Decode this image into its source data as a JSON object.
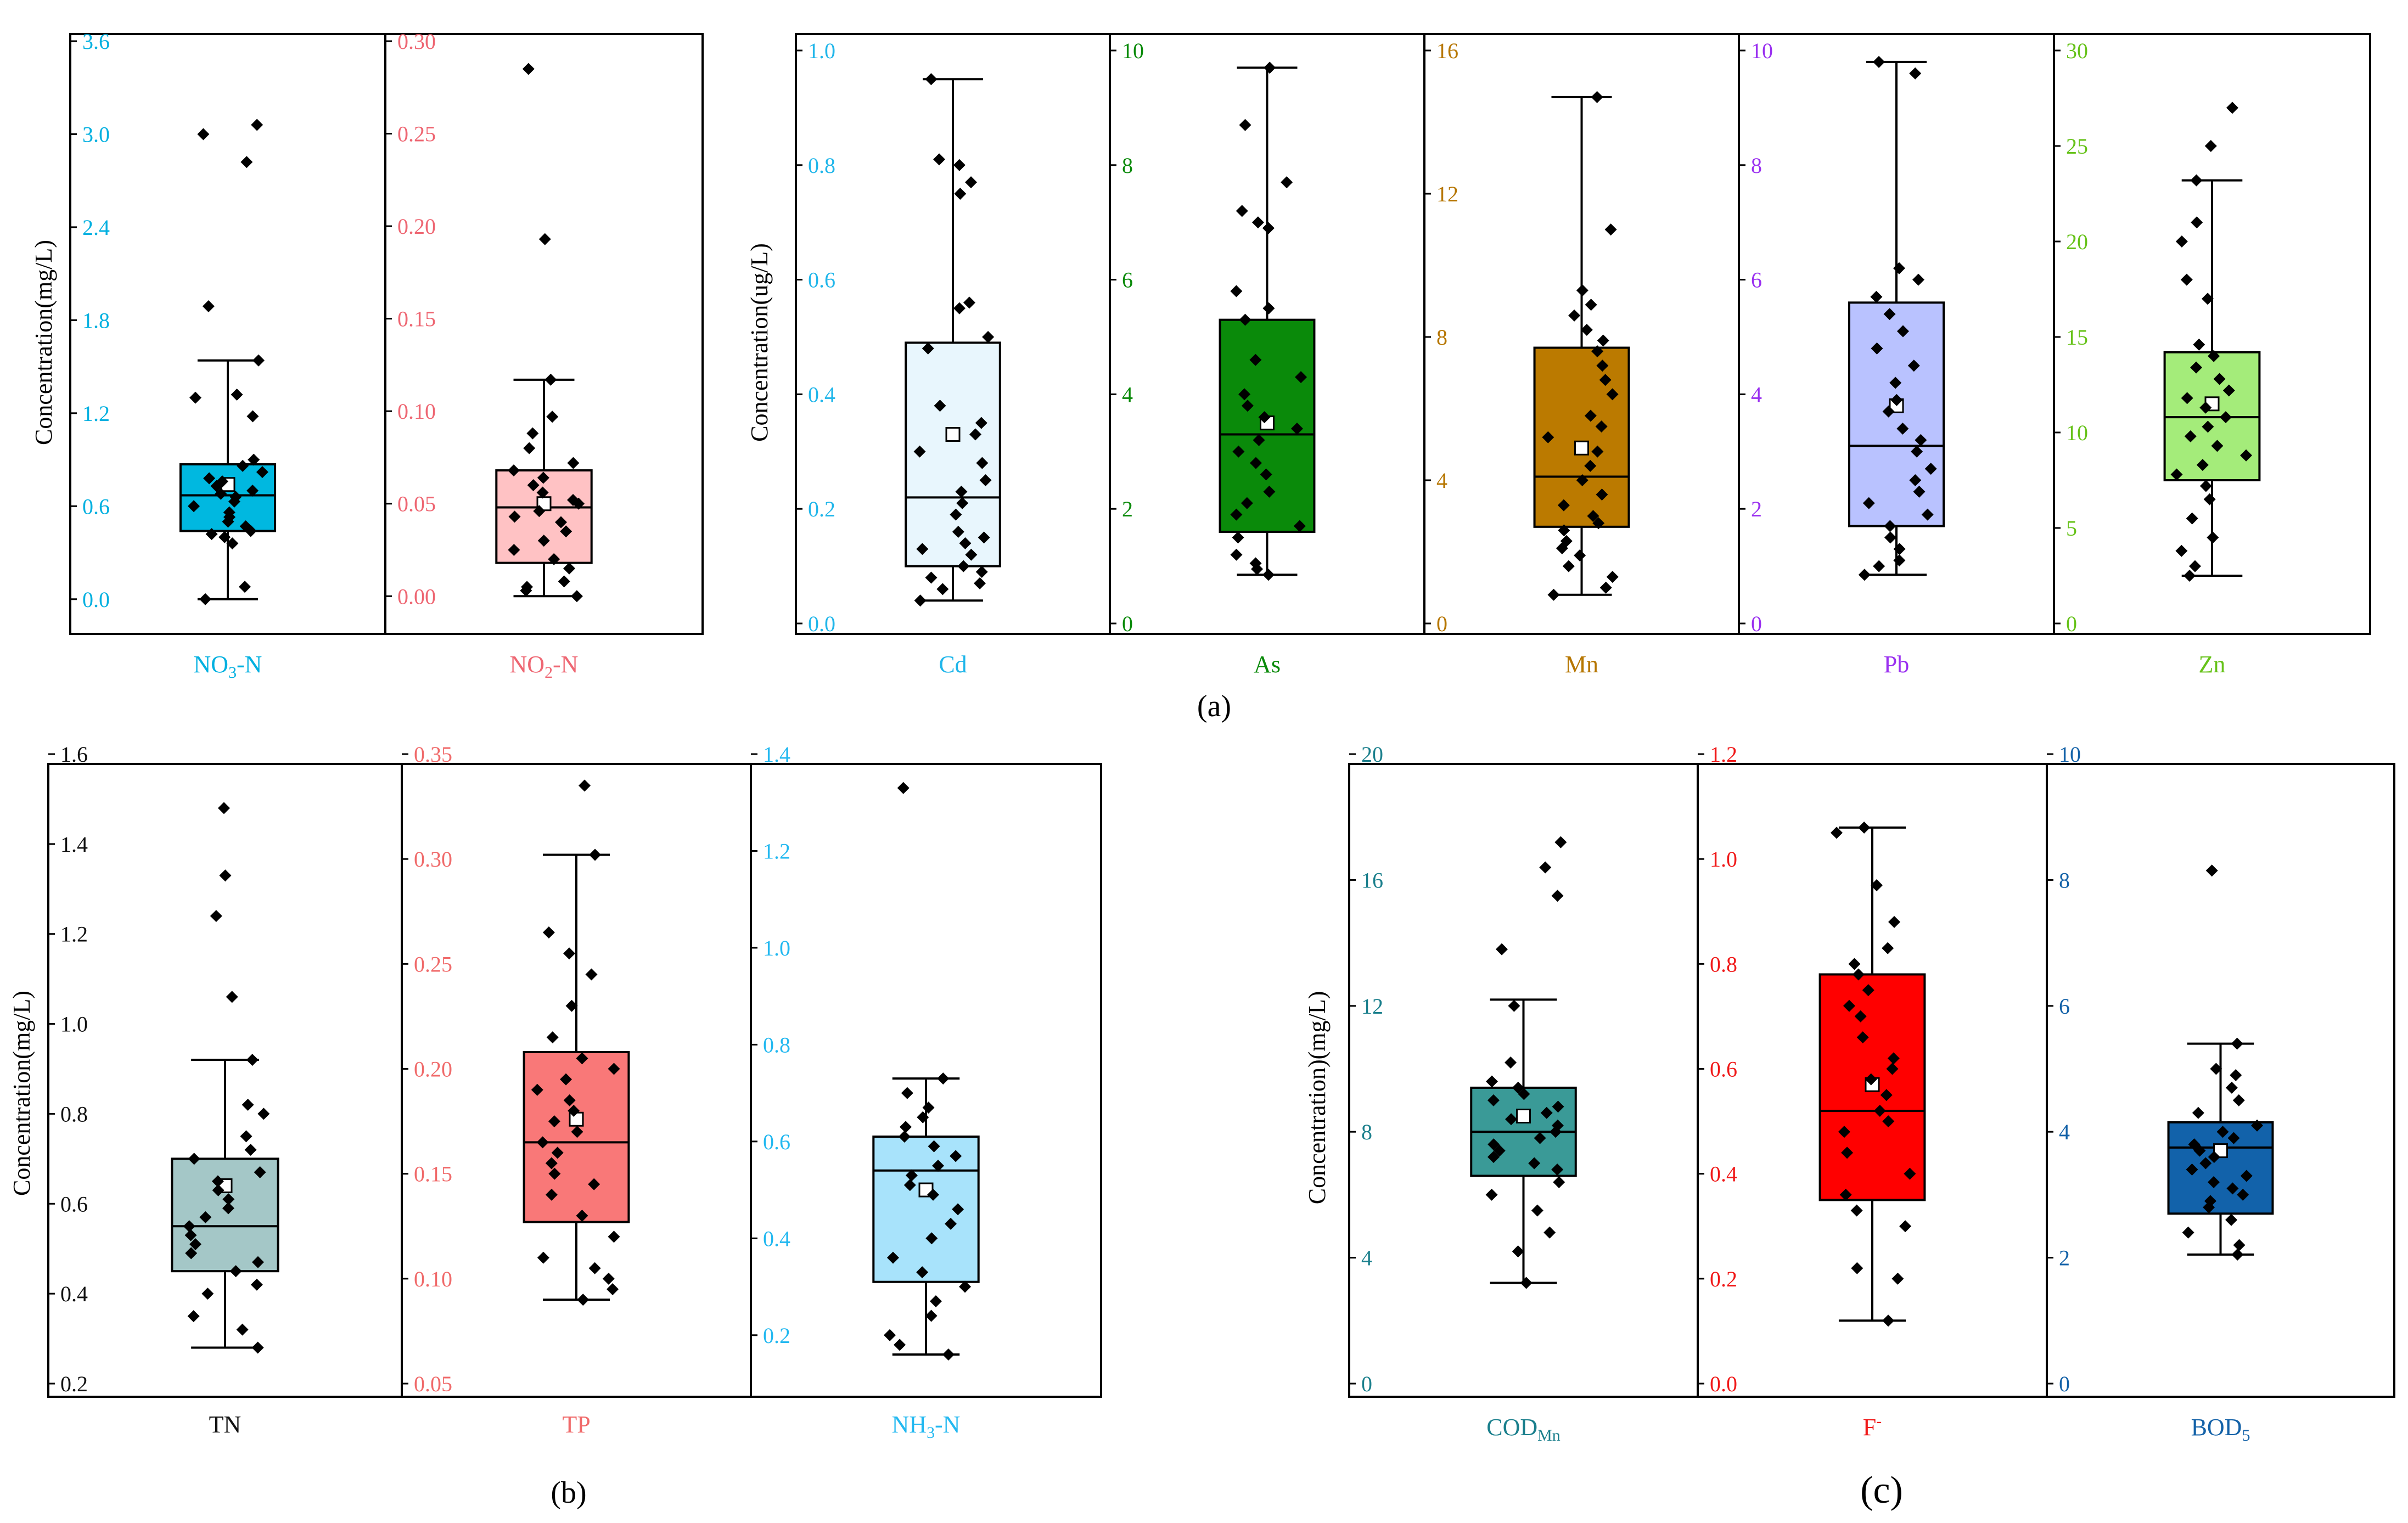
{
  "chart_data": [
    {
      "type": "box",
      "panel_label": "(a)",
      "group": "a-left",
      "ylabel": "Concentration(mg/L)",
      "plots": [
        {
          "label": "NO3-N",
          "label_main": "NO",
          "label_sub": "3",
          "label_tail": "-N",
          "color": "#00b0e0",
          "fill": "#00b8e0",
          "ylim": [
            -0.1,
            3.6
          ],
          "ticks": [
            0.0,
            0.6,
            1.2,
            1.8,
            2.4,
            3.0,
            3.6
          ],
          "tick_labels": [
            "0.0",
            "0.6",
            "1.2",
            "1.8",
            "2.4",
            "3.0",
            "3.6"
          ],
          "whisker_low": 0.0,
          "q1": 0.44,
          "median": 0.67,
          "q3": 0.87,
          "whisker_high": 1.54,
          "mean": 0.74,
          "points": [
            0.0,
            0.08,
            0.36,
            0.4,
            0.42,
            0.44,
            0.47,
            0.5,
            0.53,
            0.56,
            0.6,
            0.63,
            0.66,
            0.68,
            0.7,
            0.73,
            0.76,
            0.78,
            0.82,
            0.86,
            0.9,
            1.18,
            1.3,
            1.32,
            1.54,
            1.89,
            2.82,
            3.0,
            3.06
          ]
        },
        {
          "label": "NO2-N",
          "label_main": "NO",
          "label_sub": "2",
          "label_tail": "-N",
          "color": "#ee6672",
          "fill": "#ffc2c4",
          "ylim": [
            -0.01,
            0.3
          ],
          "ticks": [
            0.0,
            0.05,
            0.1,
            0.15,
            0.2,
            0.25,
            0.3
          ],
          "tick_labels": [
            "0.00",
            "0.05",
            "0.10",
            "0.15",
            "0.20",
            "0.25",
            "0.30"
          ],
          "whisker_low": 0.0,
          "q1": 0.018,
          "median": 0.048,
          "q3": 0.068,
          "whisker_high": 0.117,
          "mean": 0.05,
          "points": [
            0.0,
            0.003,
            0.005,
            0.008,
            0.015,
            0.02,
            0.025,
            0.03,
            0.035,
            0.04,
            0.043,
            0.046,
            0.05,
            0.052,
            0.056,
            0.06,
            0.064,
            0.068,
            0.072,
            0.08,
            0.088,
            0.097,
            0.117,
            0.193,
            0.285
          ]
        }
      ]
    },
    {
      "type": "box",
      "panel_label": "(a)",
      "group": "a-right",
      "ylabel": "Concentration(ug/L)",
      "plots": [
        {
          "label": "Cd",
          "color": "#20b6ea",
          "fill": "#e8f6fd",
          "ylim": [
            0,
            1.0
          ],
          "ticks": [
            0.0,
            0.2,
            0.4,
            0.6,
            0.8,
            1.0
          ],
          "tick_labels": [
            "0.0",
            "0.2",
            "0.4",
            "0.6",
            "0.8",
            "1.0"
          ],
          "whisker_low": 0.04,
          "q1": 0.1,
          "median": 0.22,
          "q3": 0.49,
          "whisker_high": 0.95,
          "mean": 0.33,
          "points": [
            0.04,
            0.06,
            0.07,
            0.08,
            0.09,
            0.1,
            0.12,
            0.13,
            0.14,
            0.15,
            0.16,
            0.19,
            0.21,
            0.23,
            0.25,
            0.28,
            0.3,
            0.33,
            0.35,
            0.38,
            0.48,
            0.5,
            0.55,
            0.56,
            0.75,
            0.77,
            0.8,
            0.81,
            0.95
          ]
        },
        {
          "label": "As",
          "color": "#0a8a0a",
          "fill": "#0a8a0a",
          "ylim": [
            0,
            10
          ],
          "ticks": [
            0,
            2,
            4,
            6,
            8,
            10
          ],
          "tick_labels": [
            "0",
            "2",
            "4",
            "6",
            "8",
            "10"
          ],
          "whisker_low": 0.85,
          "q1": 1.6,
          "median": 3.3,
          "q3": 5.3,
          "whisker_high": 9.7,
          "mean": 3.5,
          "points": [
            0.85,
            0.95,
            1.05,
            1.2,
            1.5,
            1.7,
            1.9,
            2.1,
            2.3,
            2.6,
            2.8,
            3.0,
            3.2,
            3.4,
            3.6,
            3.8,
            4.0,
            4.3,
            4.6,
            5.3,
            5.5,
            5.8,
            6.9,
            7.0,
            7.2,
            7.7,
            8.7,
            9.7
          ]
        },
        {
          "label": "Mn",
          "color": "#b67600",
          "fill": "#bb7a00",
          "ylim": [
            0,
            16
          ],
          "ticks": [
            0,
            4,
            8,
            12,
            16
          ],
          "tick_labels": [
            "0",
            "4",
            "8",
            "12",
            "16"
          ],
          "whisker_low": 0.8,
          "q1": 2.7,
          "median": 4.1,
          "q3": 7.7,
          "whisker_high": 14.7,
          "mean": 4.9,
          "points": [
            0.8,
            1.0,
            1.3,
            1.6,
            1.9,
            2.1,
            2.3,
            2.6,
            2.8,
            3.0,
            3.3,
            3.6,
            4.0,
            4.4,
            4.8,
            5.2,
            5.5,
            5.8,
            6.4,
            6.8,
            7.2,
            7.6,
            7.9,
            8.2,
            8.6,
            8.9,
            9.3,
            11.0,
            14.7
          ]
        },
        {
          "label": "Pb",
          "color": "#9a30f0",
          "fill": "#b9c2ff",
          "ylim": [
            0,
            10
          ],
          "ticks": [
            0,
            2,
            4,
            6,
            8,
            10
          ],
          "tick_labels": [
            "0",
            "2",
            "4",
            "6",
            "8",
            "10"
          ],
          "whisker_low": 0.85,
          "q1": 1.7,
          "median": 3.1,
          "q3": 5.6,
          "whisker_high": 9.8,
          "mean": 3.8,
          "points": [
            0.85,
            1.0,
            1.1,
            1.3,
            1.5,
            1.7,
            1.9,
            2.1,
            2.3,
            2.5,
            2.7,
            3.0,
            3.2,
            3.4,
            3.7,
            3.9,
            4.2,
            4.5,
            4.8,
            5.1,
            5.4,
            5.7,
            6.0,
            6.2,
            9.6,
            9.8
          ]
        },
        {
          "label": "Zn",
          "color": "#66c219",
          "fill": "#a4ec7a",
          "ylim": [
            0,
            30
          ],
          "ticks": [
            0,
            5,
            10,
            15,
            20,
            25,
            30
          ],
          "tick_labels": [
            "0",
            "5",
            "10",
            "15",
            "20",
            "25",
            "30"
          ],
          "whisker_low": 2.5,
          "q1": 7.5,
          "median": 10.8,
          "q3": 14.2,
          "whisker_high": 23.2,
          "mean": 11.5,
          "points": [
            2.5,
            3.0,
            3.8,
            4.5,
            5.5,
            6.5,
            7.2,
            7.8,
            8.3,
            8.8,
            9.3,
            9.8,
            10.3,
            10.8,
            11.3,
            11.8,
            12.2,
            12.8,
            13.4,
            14.0,
            14.6,
            17.0,
            18.0,
            20.0,
            21.0,
            23.2,
            25.0,
            27.0
          ]
        }
      ]
    },
    {
      "type": "box",
      "panel_label": "(b)",
      "group": "b",
      "ylabel": "Concentration(mg/L)",
      "plots": [
        {
          "label": "TN",
          "color": "#111111",
          "fill": "#a4c7c7",
          "ylim": [
            0.2,
            1.6
          ],
          "ticks": [
            0.2,
            0.4,
            0.6,
            0.8,
            1.0,
            1.2,
            1.4,
            1.6
          ],
          "tick_labels": [
            "0.2",
            "0.4",
            "0.6",
            "0.8",
            "1.0",
            "1.2",
            "1.4",
            "1.6"
          ],
          "whisker_low": 0.28,
          "q1": 0.45,
          "median": 0.55,
          "q3": 0.7,
          "whisker_high": 0.92,
          "mean": 0.64,
          "points": [
            0.28,
            0.32,
            0.35,
            0.4,
            0.42,
            0.45,
            0.47,
            0.49,
            0.51,
            0.53,
            0.55,
            0.57,
            0.59,
            0.61,
            0.63,
            0.65,
            0.67,
            0.7,
            0.72,
            0.75,
            0.8,
            0.82,
            0.92,
            1.06,
            1.24,
            1.33,
            1.48
          ]
        },
        {
          "label": "TP",
          "color": "#f06a6a",
          "fill": "#f97878",
          "ylim": [
            0.05,
            0.35
          ],
          "ticks": [
            0.05,
            0.1,
            0.15,
            0.2,
            0.25,
            0.3,
            0.35
          ],
          "tick_labels": [
            "0.05",
            "0.10",
            "0.15",
            "0.20",
            "0.25",
            "0.30",
            "0.35"
          ],
          "whisker_low": 0.09,
          "q1": 0.127,
          "median": 0.165,
          "q3": 0.208,
          "whisker_high": 0.302,
          "mean": 0.176,
          "points": [
            0.09,
            0.095,
            0.1,
            0.105,
            0.11,
            0.12,
            0.13,
            0.14,
            0.145,
            0.15,
            0.155,
            0.16,
            0.165,
            0.17,
            0.175,
            0.18,
            0.185,
            0.19,
            0.195,
            0.2,
            0.205,
            0.215,
            0.23,
            0.245,
            0.255,
            0.265,
            0.302,
            0.335
          ]
        },
        {
          "label": "NH3-N",
          "label_main": "NH",
          "label_sub": "3",
          "label_tail": "-N",
          "color": "#22b8f0",
          "fill": "#a8e3fb",
          "ylim": [
            0.1,
            1.4
          ],
          "ticks": [
            0.2,
            0.4,
            0.6,
            0.8,
            1.0,
            1.2,
            1.4
          ],
          "tick_labels": [
            "0.2",
            "0.4",
            "0.6",
            "0.8",
            "1.0",
            "1.2",
            "1.4"
          ],
          "whisker_low": 0.16,
          "q1": 0.31,
          "median": 0.54,
          "q3": 0.61,
          "whisker_high": 0.73,
          "mean": 0.5,
          "points": [
            0.16,
            0.18,
            0.2,
            0.24,
            0.27,
            0.3,
            0.33,
            0.36,
            0.4,
            0.43,
            0.46,
            0.49,
            0.51,
            0.53,
            0.55,
            0.57,
            0.59,
            0.61,
            0.63,
            0.65,
            0.67,
            0.7,
            0.73,
            1.33
          ]
        }
      ]
    },
    {
      "type": "box",
      "panel_label": "(c)",
      "group": "c",
      "ylabel": "Concentration)(mg/L)",
      "plots": [
        {
          "label": "CODMn",
          "label_main": "COD",
          "label_sub": "Mn",
          "label_tail": "",
          "color": "#1a7f8c",
          "fill": "#3a9a97",
          "ylim": [
            0,
            20
          ],
          "ticks": [
            0,
            4,
            8,
            12,
            16,
            20
          ],
          "tick_labels": [
            "0",
            "4",
            "8",
            "12",
            "16",
            "20"
          ],
          "whisker_low": 3.2,
          "q1": 6.6,
          "median": 8.0,
          "q3": 9.4,
          "whisker_high": 12.2,
          "mean": 8.5,
          "points": [
            3.2,
            4.2,
            4.8,
            5.5,
            6.0,
            6.4,
            6.8,
            7.0,
            7.2,
            7.4,
            7.6,
            7.8,
            8.0,
            8.2,
            8.4,
            8.6,
            8.8,
            9.0,
            9.2,
            9.4,
            9.6,
            10.2,
            12.0,
            13.8,
            15.5,
            16.4,
            17.2
          ]
        },
        {
          "label": "F-",
          "label_main": "F",
          "label_sup": "-",
          "color": "#f01818",
          "fill": "#ff0000",
          "ylim": [
            0,
            1.2
          ],
          "ticks": [
            0.0,
            0.2,
            0.4,
            0.6,
            0.8,
            1.0,
            1.2
          ],
          "tick_labels": [
            "0.0",
            "0.2",
            "0.4",
            "0.6",
            "0.8",
            "1.0",
            "1.2"
          ],
          "whisker_low": 0.12,
          "q1": 0.35,
          "median": 0.52,
          "q3": 0.78,
          "whisker_high": 1.06,
          "mean": 0.57,
          "points": [
            0.12,
            0.2,
            0.22,
            0.3,
            0.33,
            0.36,
            0.4,
            0.44,
            0.48,
            0.5,
            0.52,
            0.55,
            0.58,
            0.6,
            0.62,
            0.66,
            0.7,
            0.72,
            0.75,
            0.78,
            0.8,
            0.83,
            0.88,
            0.95,
            1.05,
            1.06
          ]
        },
        {
          "label": "BOD5",
          "label_main": "BOD",
          "label_sub": "5",
          "label_tail": "",
          "color": "#1462a8",
          "fill": "#1262aa",
          "ylim": [
            0,
            10
          ],
          "ticks": [
            0,
            2,
            4,
            6,
            8,
            10
          ],
          "tick_labels": [
            "0",
            "2",
            "4",
            "6",
            "8",
            "10"
          ],
          "whisker_low": 2.05,
          "q1": 2.7,
          "median": 3.75,
          "q3": 4.15,
          "whisker_high": 5.4,
          "mean": 3.7,
          "points": [
            2.05,
            2.2,
            2.4,
            2.6,
            2.8,
            2.9,
            3.0,
            3.1,
            3.2,
            3.3,
            3.4,
            3.5,
            3.6,
            3.7,
            3.8,
            3.9,
            4.0,
            4.1,
            4.3,
            4.5,
            4.7,
            4.9,
            5.0,
            5.4,
            8.15
          ]
        }
      ]
    }
  ]
}
